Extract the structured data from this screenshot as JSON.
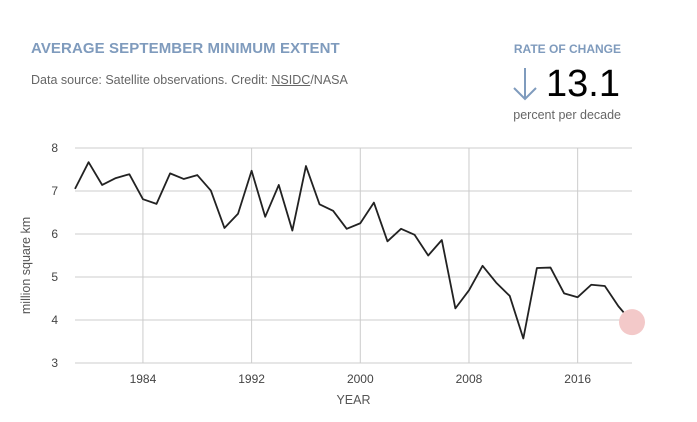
{
  "header": {
    "title": "AVERAGE SEPTEMBER MINIMUM EXTENT",
    "source_prefix": "Data source: Satellite observations. Credit: ",
    "source_link": "NSIDC",
    "source_suffix": "/NASA"
  },
  "rate_of_change": {
    "label": "RATE OF CHANGE",
    "value": "13.1",
    "unit": "percent per decade",
    "direction_icon": "arrow-down-icon"
  },
  "colors": {
    "accent": "#7f9bbd",
    "line": "#222222",
    "highlight": "#f3c9c9",
    "grid": "#cccccc"
  },
  "chart_data": {
    "type": "line",
    "xlabel": "YEAR",
    "ylabel": "million square km",
    "xlim": [
      1979,
      2020
    ],
    "ylim": [
      3,
      8
    ],
    "x_ticks": [
      1984,
      1992,
      2000,
      2008,
      2016
    ],
    "y_ticks": [
      3,
      4,
      5,
      6,
      7,
      8
    ],
    "grid": true,
    "x": [
      1979,
      1980,
      1981,
      1982,
      1983,
      1984,
      1985,
      1986,
      1987,
      1988,
      1989,
      1990,
      1991,
      1992,
      1993,
      1994,
      1995,
      1996,
      1997,
      1998,
      1999,
      2000,
      2001,
      2002,
      2003,
      2004,
      2005,
      2006,
      2007,
      2008,
      2009,
      2010,
      2011,
      2012,
      2013,
      2014,
      2015,
      2016,
      2017,
      2018,
      2019
    ],
    "y": [
      7.05,
      7.67,
      7.14,
      7.3,
      7.39,
      6.81,
      6.7,
      7.41,
      7.28,
      7.37,
      7.01,
      6.14,
      6.47,
      7.47,
      6.4,
      7.14,
      6.08,
      7.58,
      6.69,
      6.54,
      6.12,
      6.25,
      6.73,
      5.83,
      6.12,
      5.98,
      5.5,
      5.86,
      4.27,
      4.69,
      5.26,
      4.87,
      4.56,
      3.57,
      5.21,
      5.22,
      4.62,
      4.53,
      4.82,
      4.79,
      4.32
    ],
    "highlight_point": {
      "x": 2020,
      "y": 3.95
    }
  }
}
